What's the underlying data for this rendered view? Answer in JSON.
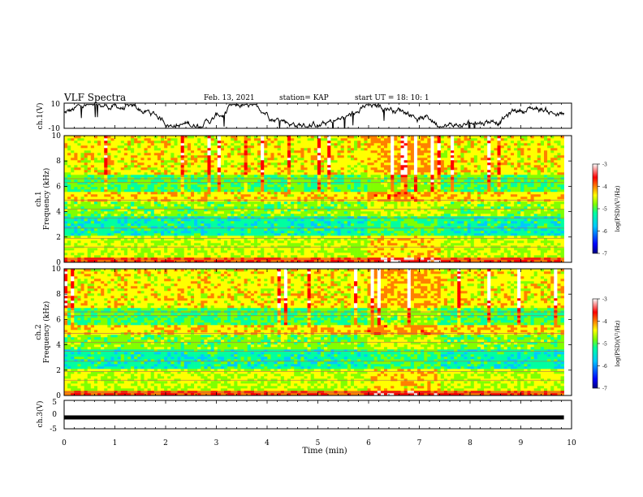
{
  "header": {
    "title": "VLF Spectra",
    "date": "Feb. 13, 2021",
    "station": "station= KAP",
    "start": "start  UT =   18: 10: 1"
  },
  "chart_data": [
    {
      "type": "line",
      "ylabel": "ch.1(V)",
      "ylim": [
        -10,
        10
      ],
      "yticks": [
        "10",
        "-10"
      ],
      "xlim": [
        0,
        10
      ],
      "x_extent": [
        0,
        9.85
      ],
      "color": "#000000"
    },
    {
      "type": "heatmap",
      "ylabel": "ch.1\nFrequency  (kHz)",
      "ylabel_lines": [
        "ch.1",
        "Frequency  (kHz)"
      ],
      "ylim": [
        0,
        10
      ],
      "yticks": [
        "0",
        "2",
        "4",
        "6",
        "8",
        "10"
      ],
      "xlim": [
        0,
        10
      ],
      "x_extent": [
        0,
        9.85
      ],
      "colorbar": {
        "label": "log(PSD)(V²/Hz)",
        "range": [
          -7,
          -3
        ],
        "ticks": [
          "-3",
          "-4",
          "-5",
          "-6",
          "-7"
        ]
      },
      "colors": [
        "#000080",
        "#0000ff",
        "#00c8ff",
        "#00ffa0",
        "#80ff00",
        "#ffff00",
        "#ff8000",
        "#ff0000",
        "#ffffff"
      ]
    },
    {
      "type": "heatmap",
      "ylabel": "ch.2\nFrequency  (kHz)",
      "ylabel_lines": [
        "ch.2",
        "Frequency  (kHz)"
      ],
      "ylim": [
        0,
        10
      ],
      "yticks": [
        "0",
        "2",
        "4",
        "6",
        "8",
        "10"
      ],
      "xlim": [
        0,
        10
      ],
      "x_extent": [
        0,
        9.85
      ],
      "colorbar": {
        "label": "log(PSD)(V²/Hz)",
        "range": [
          -7,
          -3
        ],
        "ticks": [
          "-3",
          "-4",
          "-5",
          "-6",
          "-7"
        ]
      },
      "colors": [
        "#000080",
        "#0000ff",
        "#00c8ff",
        "#00ffa0",
        "#80ff00",
        "#ffff00",
        "#ff8000",
        "#ff0000",
        "#ffffff"
      ]
    },
    {
      "type": "line",
      "ylabel": "ch.3(V)",
      "ylim": [
        -5,
        5
      ],
      "yticks": [
        "5",
        "0",
        "-5"
      ],
      "level": -1,
      "xlim": [
        0,
        10
      ],
      "x_extent": [
        0,
        9.85
      ],
      "xlabel": "Time  (min)",
      "xticks": [
        "0",
        "1",
        "2",
        "3",
        "4",
        "5",
        "6",
        "7",
        "8",
        "9",
        "10"
      ]
    }
  ]
}
